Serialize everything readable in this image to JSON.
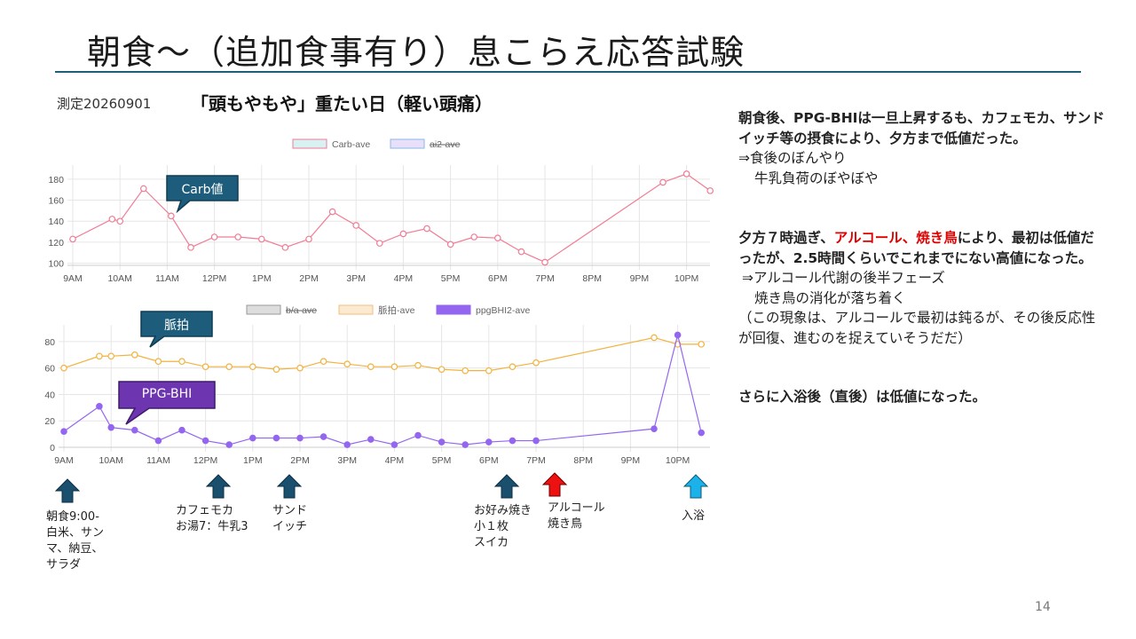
{
  "slide": {
    "title": "朝食～（追加食事有り）息こらえ応答試験",
    "measurement_label": "測定20260901",
    "day_note": "「頭もやもや」重たい日（軽い頭痛）",
    "page_number": "14"
  },
  "callouts": {
    "carb": "Carb値",
    "pulse": "脈拍",
    "ppg": "PPG-BHI"
  },
  "commentary": {
    "p1_bold": "朝食後、PPG-BHIは一旦上昇するも、カフェモカ、サンドイッチ等の摂食により、夕方まで低値だった。",
    "p1_l1": "⇒食後のぼんやり",
    "p1_l2": "牛乳負荷のぼやぼや",
    "p2_a": "夕方７時過ぎ、",
    "p2_red": "アルコール、焼き鳥",
    "p2_b": "により、最初は低値だったが、2.5時間くらいでこれまでにない高値になった。",
    "p2_l1": "⇒アルコール代謝の後半フェーズ",
    "p2_l2": "焼き鳥の消化が落ち着く",
    "p2_l3": "（この現象は、アルコールで最初は鈍るが、その後反応性が回復、進むのを捉えていそうだだ）",
    "p3_bold": "さらに入浴後（直後）は低値になった。"
  },
  "events": [
    {
      "label": "朝食9:00-\n白米、サン\nマ、納豆、\nサラダ",
      "color": "#1b4f6e"
    },
    {
      "label": "カフェモカ\nお湯7：牛乳3",
      "color": "#1b4f6e"
    },
    {
      "label": "サンド\nイッチ",
      "color": "#1b4f6e"
    },
    {
      "label": "お好み焼き\n小１枚\nスイカ",
      "color": "#1b4f6e"
    },
    {
      "label": "アルコール\n焼き鳥",
      "color": "#ee1111"
    },
    {
      "label": "入浴",
      "color": "#1ab2e8"
    }
  ],
  "chart_data": [
    {
      "type": "line",
      "x_ticks": [
        "9AM",
        "10AM",
        "11AM",
        "12PM",
        "1PM",
        "2PM",
        "3PM",
        "4PM",
        "5PM",
        "6PM",
        "7PM",
        "8PM",
        "9PM",
        "10PM"
      ],
      "ylim": [
        98,
        190
      ],
      "y_ticks": [
        100,
        120,
        140,
        160,
        180
      ],
      "grid": true,
      "legend": [
        {
          "name": "Carb-ave",
          "fill": "#d8f1f1",
          "stroke": "#f07c95",
          "hidden": false
        },
        {
          "name": "ai2-ave",
          "fill": "#e8e0fa",
          "stroke": "#8fb6ea",
          "hidden": true
        }
      ],
      "legend_position": "top",
      "series": [
        {
          "name": "Carb-ave",
          "color": "#f07c95",
          "x": [
            "9:00",
            "9:50",
            "10:00",
            "10:30",
            "11:05",
            "11:30",
            "12:00",
            "12:30",
            "13:00",
            "13:30",
            "14:00",
            "14:30",
            "15:00",
            "15:30",
            "16:00",
            "16:30",
            "17:00",
            "17:30",
            "18:00",
            "18:30",
            "19:00",
            "21:30",
            "22:00",
            "22:30"
          ],
          "values": [
            123,
            142,
            140,
            171,
            145,
            115,
            125,
            125,
            123,
            115,
            123,
            149,
            136,
            119,
            128,
            133,
            118,
            125,
            124,
            111,
            101,
            177,
            185,
            169
          ]
        }
      ]
    },
    {
      "type": "line",
      "x_ticks": [
        "9AM",
        "10AM",
        "11AM",
        "12PM",
        "1PM",
        "2PM",
        "3PM",
        "4PM",
        "5PM",
        "6PM",
        "7PM",
        "8PM",
        "9PM",
        "10PM"
      ],
      "ylim": [
        0,
        90
      ],
      "y_ticks": [
        0,
        20,
        40,
        60,
        80
      ],
      "grid": true,
      "legend": [
        {
          "name": "b/a-ave",
          "fill": "#dddddd",
          "stroke": "#999999",
          "hidden": true
        },
        {
          "name": "脈拍-ave",
          "fill": "#fbe9d2",
          "stroke": "#f2c07f",
          "hidden": false
        },
        {
          "name": "ppgBHI2-ave",
          "fill": "#9466f0",
          "stroke": "#9466f0",
          "hidden": false
        }
      ],
      "legend_position": "top",
      "series": [
        {
          "name": "脈拍-ave",
          "color": "#f2b23f",
          "x": [
            "9:00",
            "9:45",
            "10:00",
            "10:30",
            "11:00",
            "11:30",
            "12:00",
            "12:30",
            "13:00",
            "13:30",
            "14:00",
            "14:30",
            "15:00",
            "15:30",
            "16:00",
            "16:30",
            "17:00",
            "17:30",
            "18:00",
            "18:30",
            "19:00",
            "21:30",
            "22:00",
            "22:30"
          ],
          "values": [
            60,
            69,
            69,
            70,
            65,
            65,
            61,
            61,
            61,
            59,
            60,
            65,
            63,
            61,
            61,
            62,
            59,
            58,
            58,
            61,
            64,
            83,
            78,
            78
          ]
        },
        {
          "name": "ppgBHI2-ave",
          "color": "#9466f0",
          "x": [
            "9:00",
            "9:45",
            "10:00",
            "10:30",
            "11:00",
            "11:30",
            "12:00",
            "12:30",
            "13:00",
            "13:30",
            "14:00",
            "14:30",
            "15:00",
            "15:30",
            "16:00",
            "16:30",
            "17:00",
            "17:30",
            "18:00",
            "18:30",
            "19:00",
            "21:30",
            "22:00",
            "22:30"
          ],
          "values": [
            12,
            31,
            15,
            13,
            5,
            13,
            5,
            2,
            7,
            7,
            7,
            8,
            2,
            6,
            2,
            9,
            4,
            2,
            4,
            5,
            5,
            14,
            85,
            11
          ]
        }
      ]
    }
  ]
}
